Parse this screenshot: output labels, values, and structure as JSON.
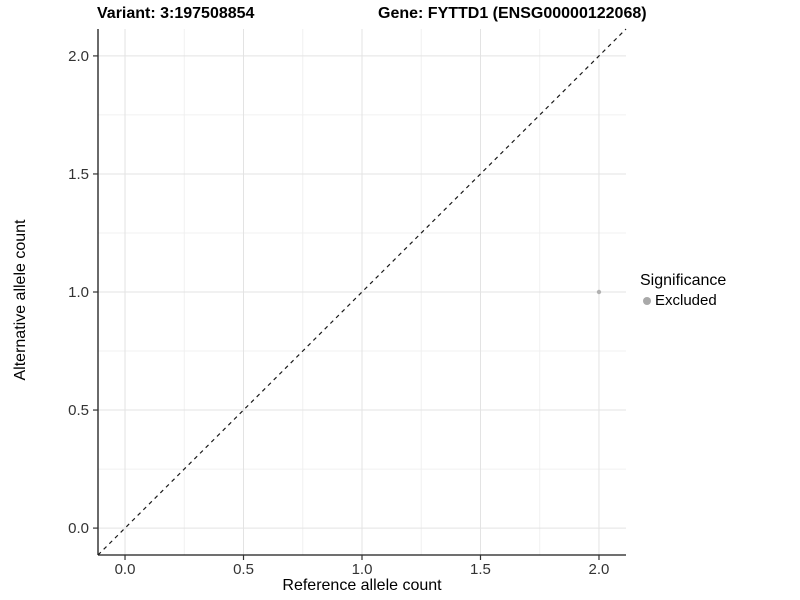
{
  "chart_data": {
    "type": "scatter",
    "title_left": "Variant: 3:197508854",
    "title_right": "Gene: FYTTD1 (ENSG00000122068)",
    "xlabel": "Reference allele count",
    "ylabel": "Alternative allele count",
    "xlim": [
      -0.114,
      2.114
    ],
    "ylim": [
      -0.114,
      2.114
    ],
    "x_ticks": [
      0.0,
      0.5,
      1.0,
      1.5,
      2.0
    ],
    "x_tick_labels": [
      "0.0",
      "0.5",
      "1.0",
      "1.5",
      "2.0"
    ],
    "y_ticks": [
      0.0,
      0.5,
      1.0,
      1.5,
      2.0
    ],
    "y_tick_labels": [
      "0.0",
      "0.5",
      "1.0",
      "1.5",
      "2.0"
    ],
    "x_minor_ticks": [
      0.25,
      0.75,
      1.25,
      1.75
    ],
    "y_minor_ticks": [
      0.25,
      0.75,
      1.25,
      1.75
    ],
    "grid": true,
    "identity_line": {
      "show": true,
      "style": "dashed",
      "slope": 1,
      "intercept": 0
    },
    "series": [
      {
        "name": "Excluded",
        "color": "#b2b2b2",
        "points": [
          {
            "x": 2.0,
            "y": 1.0
          }
        ]
      }
    ],
    "legend": {
      "position": "right",
      "title": "Significance",
      "items": [
        {
          "label": "Excluded",
          "color": "#a9a9a9"
        }
      ]
    },
    "colors": {
      "background": "#ffffff",
      "grid_major": "#e3e3e3",
      "grid_minor": "#f0f0f0",
      "axis_line": "#1a1a1a",
      "tick_mark": "#333333",
      "tick_text": "#333333",
      "dashed_line": "#1a1a1a",
      "point": "#b2b2b2"
    }
  }
}
